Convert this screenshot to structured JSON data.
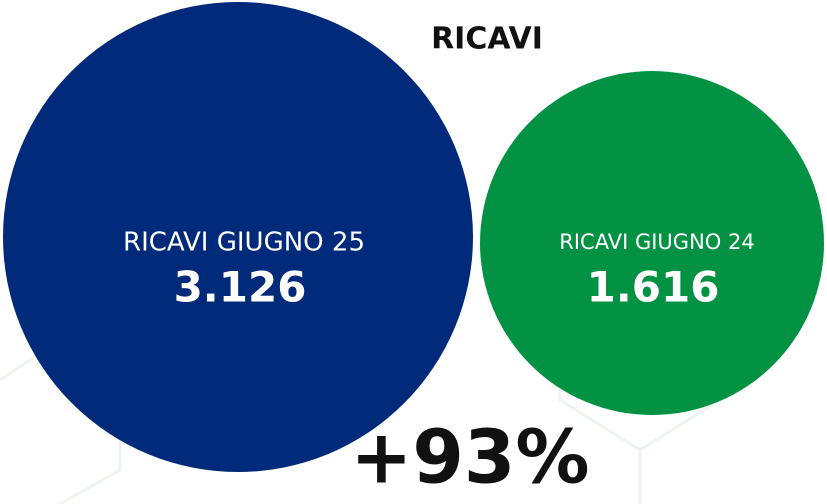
{
  "title": "RICAVI",
  "circles": [
    {
      "label": "RICAVI GIUGNO 25",
      "value": "3.126"
    },
    {
      "label": "RICAVI GIUGNO 24",
      "value": "1.616"
    }
  ],
  "change": "+93%"
}
